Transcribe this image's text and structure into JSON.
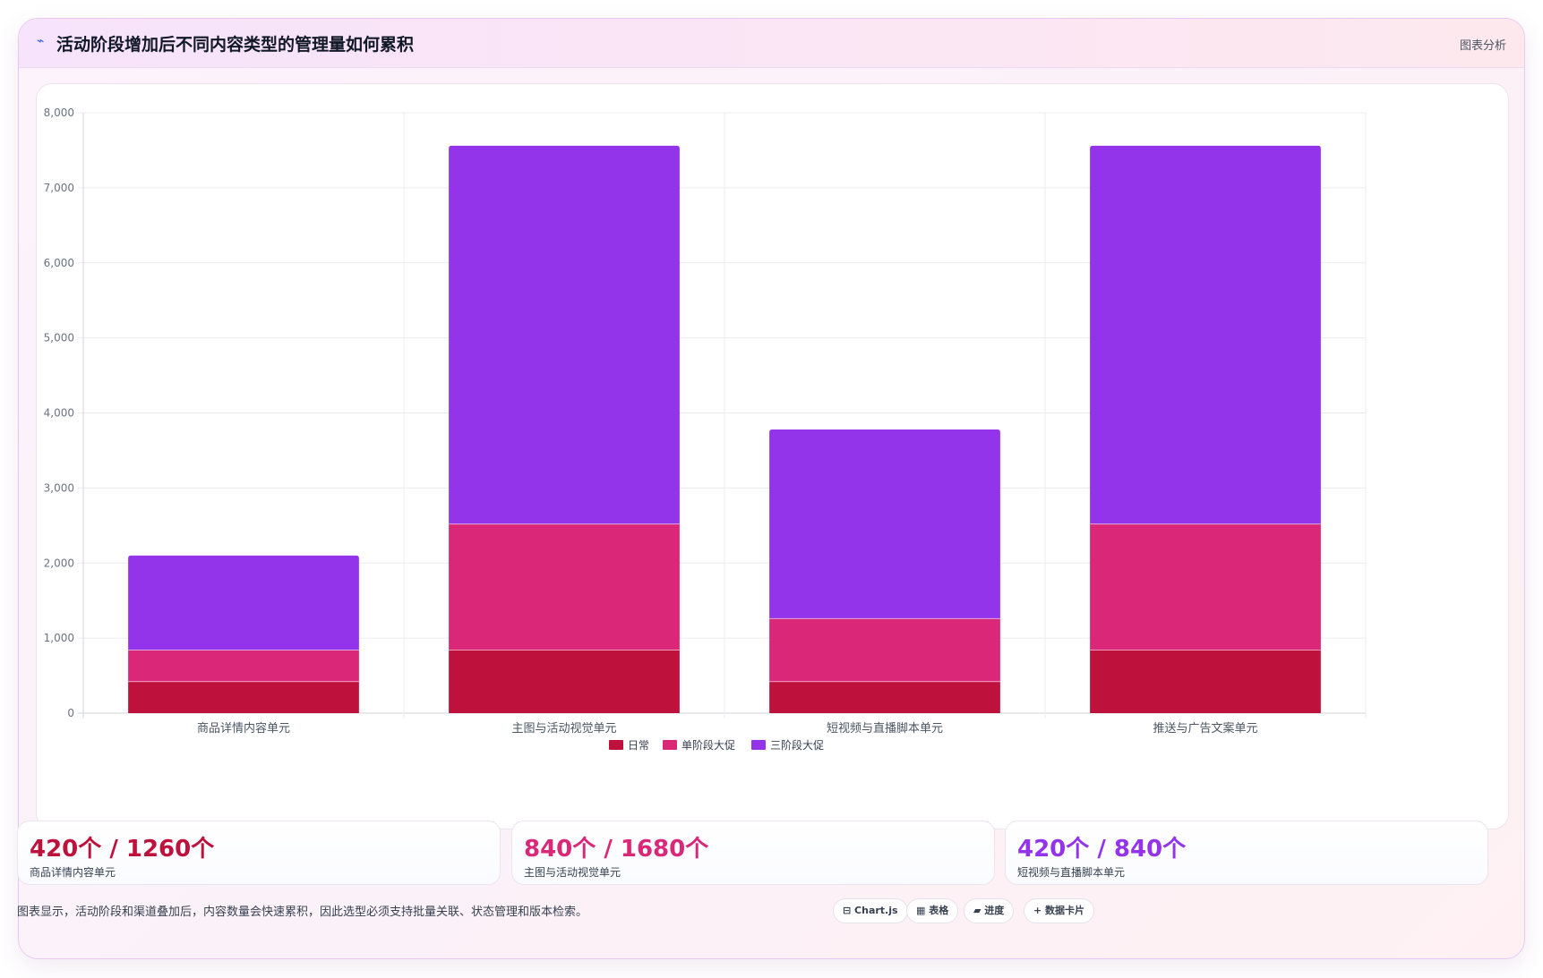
{
  "header": {
    "icon": "trend-line-icon",
    "icon_glyph": "⌁",
    "title": "活动阶段增加后不同内容类型的管理量如何累积",
    "action_label": "图表分析"
  },
  "chart_data": {
    "type": "bar",
    "stacked": true,
    "categories": [
      "商品详情内容单元",
      "主图与活动视觉单元",
      "短视频与直播脚本单元",
      "推送与广告文案单元"
    ],
    "series": [
      {
        "name": "日常",
        "color": "#be123c",
        "values": [
          420,
          840,
          420,
          840
        ]
      },
      {
        "name": "单阶段大促",
        "color": "#db2777",
        "values": [
          420,
          1680,
          840,
          1680
        ]
      },
      {
        "name": "三阶段大促",
        "color": "#9333ea",
        "values": [
          1260,
          5040,
          2520,
          5040
        ]
      }
    ],
    "ylim": [
      0,
      8000
    ],
    "yticks": [
      "0",
      "1,000",
      "2,000",
      "3,000",
      "4,000",
      "5,000",
      "6,000",
      "7,000",
      "8,000"
    ],
    "grid": true,
    "legend_position": "bottom"
  },
  "stats": [
    {
      "value": "420个 / 1260个",
      "label": "商品详情内容单元",
      "color": "#be123c"
    },
    {
      "value": "840个 / 1680个",
      "label": "主图与活动视觉单元",
      "color": "#db2777"
    },
    {
      "value": "420个 / 840个",
      "label": "短视频与直播脚本单元",
      "color": "#9333ea"
    }
  ],
  "footer": {
    "text": "图表显示，活动阶段和渠道叠加后，内容数量会快速累积，因此选型必须支持批量关联、状态管理和版本检索。"
  },
  "chips": [
    {
      "label": "⊟ Chart.js",
      "icon": "chart-icon"
    },
    {
      "label": "▦ 表格",
      "icon": "table-icon"
    },
    {
      "label": "▰ 进度",
      "icon": "progress-icon"
    },
    {
      "label": "+ 数据卡片",
      "icon": "plus-icon"
    }
  ]
}
